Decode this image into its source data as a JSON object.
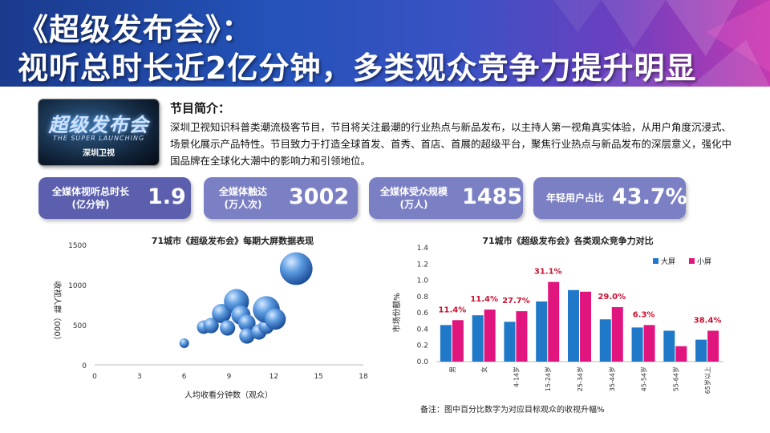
{
  "header": {
    "title_line1": "《超级发布会》：",
    "title_line2": "视听总时长近2亿分钟，多类观众竞争力提升明显"
  },
  "thumbnail": {
    "logo_text": "超级发布会",
    "sub_text": "THE SUPER LAUNCHING",
    "channel_text": "深圳卫视"
  },
  "intro": {
    "title": "节目简介：",
    "text": "深圳卫视知识科普类潮流极客节目，节目将关注最潮的行业热点与新品发布，以主持人第一视角真实体验，从用户角度沉浸式、场景化展示产品特性。节目致力于打造全球首发、首秀、首店、首展的超级平台，聚焦行业热点与新品发布的深层意义，强化中国品牌在全球化大潮中的影响力和引领地位。"
  },
  "stats": [
    {
      "label": "全媒体视听总时长\n(亿分钟)",
      "value": "1.9"
    },
    {
      "label": "全媒体触达\n(万人次)",
      "value": "3002"
    },
    {
      "label": "全媒体受众规模\n(万人)",
      "value": "1485"
    },
    {
      "label": "年轻用户占比",
      "value": "43.7%"
    }
  ],
  "colors": {
    "stat_dark": "#5b5fae",
    "stat_light": "#7b7fc4",
    "big_screen": "#1f78c8",
    "small_screen": "#e0157d",
    "pct_label": "#c8102e"
  },
  "chart_data": [
    {
      "type": "scatter",
      "title": "71城市《超级发布会》每期大屏数据表现",
      "xlabel": "人均收看分钟数（观众）",
      "ylabel": "收视人群（000）",
      "xlim": [
        0,
        18
      ],
      "ylim": [
        0,
        1500
      ],
      "x_ticks": [
        "0",
        "3",
        "6",
        "9",
        "12",
        "15",
        "18"
      ],
      "y_ticks": [
        "0",
        "500",
        "1000",
        "1500"
      ],
      "points": [
        {
          "x": 6.0,
          "y": 270,
          "size": 5
        },
        {
          "x": 7.3,
          "y": 470,
          "size": 7
        },
        {
          "x": 7.8,
          "y": 490,
          "size": 8
        },
        {
          "x": 8.5,
          "y": 640,
          "size": 10
        },
        {
          "x": 8.9,
          "y": 460,
          "size": 8
        },
        {
          "x": 9.5,
          "y": 790,
          "size": 13
        },
        {
          "x": 9.8,
          "y": 620,
          "size": 10
        },
        {
          "x": 10.2,
          "y": 520,
          "size": 9
        },
        {
          "x": 10.2,
          "y": 360,
          "size": 8
        },
        {
          "x": 11.0,
          "y": 410,
          "size": 8
        },
        {
          "x": 11.5,
          "y": 480,
          "size": 8
        },
        {
          "x": 11.5,
          "y": 690,
          "size": 14
        },
        {
          "x": 12.1,
          "y": 570,
          "size": 11
        },
        {
          "x": 13.5,
          "y": 1200,
          "size": 17
        }
      ]
    },
    {
      "type": "bar",
      "title": "71城市《超级发布会》各类观众竞争力对比",
      "ylabel": "市场份额%",
      "ylim": [
        0,
        1.4
      ],
      "y_ticks": [
        "0.0",
        "0.2",
        "0.4",
        "0.6",
        "0.8",
        "1.0",
        "1.2",
        "1.4"
      ],
      "categories": [
        "男",
        "女",
        "4-14岁",
        "15-24岁",
        "25-34岁",
        "35-44岁",
        "45-54岁",
        "55-64岁",
        "65岁以上"
      ],
      "series": [
        {
          "name": "大屏",
          "values": [
            0.45,
            0.57,
            0.49,
            0.74,
            0.88,
            0.52,
            0.42,
            0.38,
            0.27
          ]
        },
        {
          "name": "小屏",
          "values": [
            0.51,
            0.64,
            0.62,
            0.98,
            0.86,
            0.67,
            0.45,
            0.19,
            0.38
          ]
        }
      ],
      "annotations": [
        "11.4%",
        "11.4%",
        "27.7%",
        "31.1%",
        "",
        "29.0%",
        "6.3%",
        "",
        "38.4%"
      ],
      "legend_position": "top-right"
    }
  ],
  "footnote": "备注：图中百分比数字为对应目标观众的收视升幅%"
}
